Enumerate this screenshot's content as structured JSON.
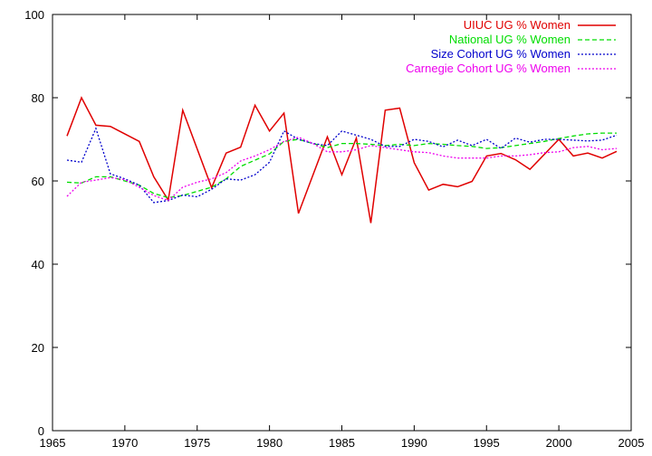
{
  "chart_data": {
    "type": "line",
    "title": "",
    "xlabel": "",
    "ylabel": "",
    "xlim": [
      1965,
      2005
    ],
    "ylim": [
      0,
      100
    ],
    "xticks": [
      1965,
      1970,
      1975,
      1980,
      1985,
      1990,
      1995,
      2000,
      2005
    ],
    "yticks": [
      0,
      20,
      40,
      60,
      80,
      100
    ],
    "grid": false,
    "legend_position": "top-right",
    "series": [
      {
        "name": "UIUC UG % Women",
        "color": "#e00000",
        "style": "solid",
        "x": [
          1966,
          1967,
          1968,
          1969,
          1971,
          1972,
          1973,
          1974,
          1976,
          1977,
          1978,
          1979,
          1980,
          1981,
          1982,
          1984,
          1985,
          1986,
          1987,
          1988,
          1989,
          1990,
          1991,
          1992,
          1993,
          1994,
          1995,
          1996,
          1997,
          1998,
          2000,
          2001,
          2002,
          2003,
          2004
        ],
        "values": [
          70.8,
          80.0,
          73.4,
          73.1,
          69.5,
          61.0,
          55.4,
          77.0,
          58.4,
          66.7,
          68.1,
          78.2,
          72.0,
          76.3,
          52.2,
          70.6,
          61.5,
          70.3,
          49.9,
          77.0,
          77.5,
          64.4,
          57.8,
          59.2,
          58.6,
          59.9,
          66.0,
          66.6,
          65.1,
          62.8,
          70.0,
          66.0,
          66.7,
          65.5,
          67.1
        ]
      },
      {
        "name": "National UG % Women",
        "color": "#00dd00",
        "style": "dashed",
        "x": [
          1966,
          1967,
          1968,
          1969,
          1970,
          1971,
          1972,
          1973,
          1974,
          1975,
          1976,
          1977,
          1978,
          1979,
          1980,
          1981,
          1982,
          1983,
          1984,
          1985,
          1986,
          1987,
          1988,
          1989,
          1990,
          1991,
          1992,
          1993,
          1994,
          1995,
          1996,
          1997,
          1998,
          1999,
          2000,
          2001,
          2002,
          2003,
          2004
        ],
        "values": [
          59.7,
          59.5,
          61.0,
          61.0,
          60.0,
          59.0,
          57.0,
          56.0,
          56.5,
          57.5,
          58.5,
          60.5,
          63.5,
          65.0,
          66.5,
          69.5,
          70.0,
          69.0,
          68.0,
          69.0,
          69.0,
          68.8,
          68.5,
          68.8,
          68.5,
          69.0,
          68.8,
          68.5,
          68.3,
          67.8,
          68.0,
          68.5,
          69.0,
          69.5,
          70.2,
          70.8,
          71.3,
          71.5,
          71.5
        ]
      },
      {
        "name": "Size Cohort UG % Women",
        "color": "#0000cc",
        "style": "dotted",
        "x": [
          1966,
          1967,
          1968,
          1969,
          1970,
          1971,
          1972,
          1973,
          1974,
          1975,
          1976,
          1977,
          1978,
          1979,
          1980,
          1981,
          1982,
          1983,
          1984,
          1985,
          1986,
          1987,
          1988,
          1989,
          1990,
          1991,
          1992,
          1993,
          1994,
          1995,
          1996,
          1997,
          1998,
          1999,
          2000,
          2001,
          2002,
          2003,
          2004
        ],
        "values": [
          65.0,
          64.5,
          72.6,
          61.7,
          60.5,
          59.0,
          54.8,
          55.3,
          56.6,
          56.2,
          58.0,
          60.5,
          60.2,
          61.5,
          64.5,
          72.0,
          70.0,
          69.0,
          68.5,
          72.0,
          71.0,
          70.0,
          68.3,
          68.3,
          70.0,
          69.5,
          68.2,
          69.8,
          68.5,
          70.0,
          67.8,
          70.3,
          69.3,
          70.0,
          70.0,
          69.8,
          69.6,
          69.8,
          71.0
        ]
      },
      {
        "name": "Carnegie Cohort UG % Women",
        "color": "#ee00ee",
        "style": "dotted",
        "x": [
          1966,
          1967,
          1968,
          1969,
          1970,
          1971,
          1972,
          1973,
          1974,
          1975,
          1976,
          1977,
          1978,
          1979,
          1980,
          1981,
          1982,
          1983,
          1984,
          1985,
          1986,
          1987,
          1988,
          1989,
          1990,
          1991,
          1992,
          1993,
          1994,
          1995,
          1996,
          1997,
          1998,
          1999,
          2000,
          2001,
          2002,
          2003,
          2004
        ],
        "values": [
          56.3,
          59.7,
          60.2,
          60.8,
          60.3,
          58.5,
          56.5,
          55.3,
          58.5,
          59.7,
          60.5,
          62.0,
          64.8,
          66.0,
          67.5,
          69.5,
          70.5,
          69.0,
          67.0,
          67.0,
          67.5,
          68.5,
          68.0,
          67.5,
          67.0,
          66.8,
          66.0,
          65.5,
          65.5,
          65.5,
          66.0,
          66.0,
          66.3,
          66.8,
          67.0,
          68.0,
          68.3,
          67.5,
          67.8
        ]
      }
    ]
  }
}
